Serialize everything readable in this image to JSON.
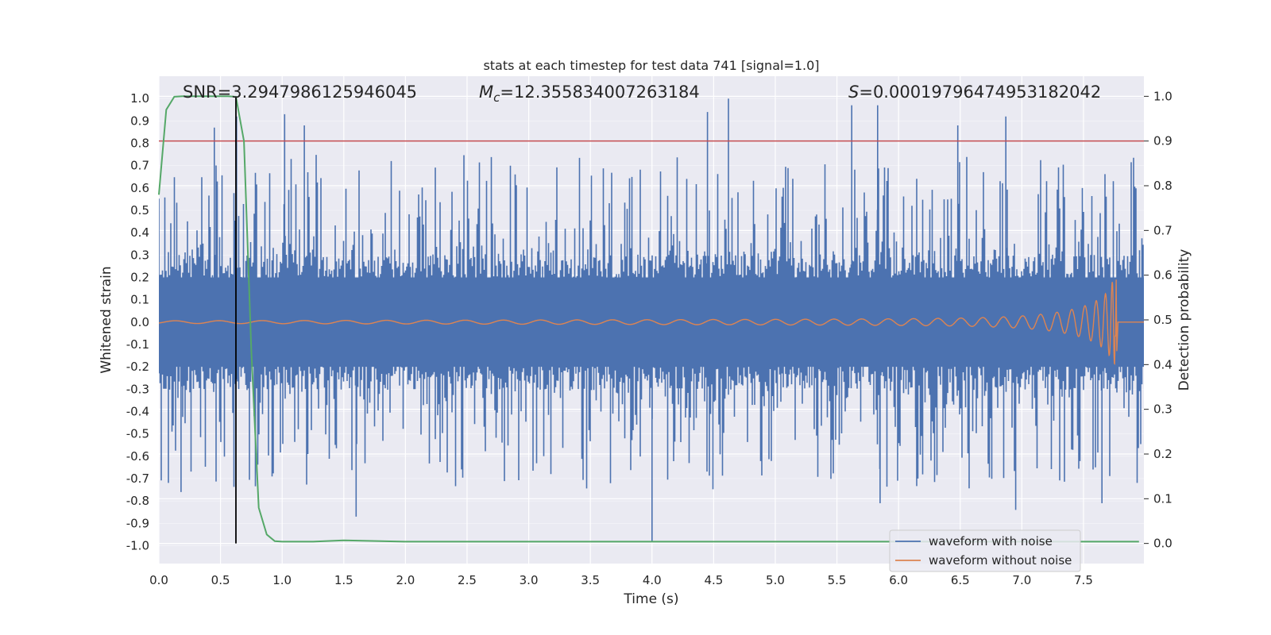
{
  "chart_data": {
    "type": "line",
    "title": "stats at each timestep for test data 741 [signal=1.0]",
    "xlabel": "Time (s)",
    "ylabel_left": "Whitened strain",
    "ylabel_right": "Detection probability",
    "xlim": [
      0.0,
      7.99
    ],
    "ylim_left": [
      -1.08,
      1.1
    ],
    "ylim_right": [
      -0.045,
      1.045
    ],
    "xticks": [
      0.0,
      0.5,
      1.0,
      1.5,
      2.0,
      2.5,
      3.0,
      3.5,
      4.0,
      4.5,
      5.0,
      5.5,
      6.0,
      6.5,
      7.0,
      7.5
    ],
    "xtick_labels": [
      "0.0",
      "0.5",
      "1.0",
      "1.5",
      "2.0",
      "2.5",
      "3.0",
      "3.5",
      "4.0",
      "4.5",
      "5.0",
      "5.5",
      "6.0",
      "6.5",
      "7.0",
      "7.5"
    ],
    "yticks_left": [
      1.0,
      0.9,
      0.8,
      0.7,
      0.6,
      0.5,
      0.4,
      0.3,
      0.2,
      0.1,
      0.0,
      -0.1,
      -0.2,
      -0.3,
      -0.4,
      -0.5,
      -0.6,
      -0.7,
      -0.8,
      -0.9,
      -1.0
    ],
    "ytick_labels_left": [
      "1.0",
      "0.9",
      "0.8",
      "0.7",
      "0.6",
      "0.5",
      "0.4",
      "0.3",
      "0.2",
      "0.1",
      "0.0",
      "-0.1",
      "-0.2",
      "-0.3",
      "-0.4",
      "-0.5",
      "-0.6",
      "-0.7",
      "-0.8",
      "-0.9",
      "-1.0"
    ],
    "yticks_right": [
      1.0,
      0.9,
      0.8,
      0.7,
      0.6,
      0.5,
      0.4,
      0.3,
      0.2,
      0.1,
      0.0
    ],
    "ytick_labels_right": [
      "1.0",
      "0.9",
      "0.8",
      "0.7",
      "0.6",
      "0.5",
      "0.4",
      "0.3",
      "0.2",
      "0.1",
      "0.0"
    ],
    "annotations": {
      "snr": "SNR=3.2947986125946045",
      "mc_symbol": "M",
      "mc_subscript": "c",
      "mc_value": "=12.355834007263184",
      "s_symbol": "S",
      "s_value": "=0.00019796474953182042"
    },
    "threshold_line": {
      "y_right": 0.9,
      "color": "#c44e52"
    },
    "vertical_marker": {
      "x": 0.625,
      "color": "#000000"
    },
    "noise_band": {
      "name": "waveform with noise",
      "color": "#4c72b0",
      "typical_peak": 0.3,
      "max_positive": 1.0,
      "min_negative": -1.0,
      "spikes": [
        {
          "x": 0.45,
          "y": 0.87
        },
        {
          "x": 0.63,
          "y": 0.92
        },
        {
          "x": 1.02,
          "y": 0.93
        },
        {
          "x": 4.45,
          "y": 0.94
        },
        {
          "x": 4.62,
          "y": 1.0
        },
        {
          "x": 5.62,
          "y": 0.97
        },
        {
          "x": 5.83,
          "y": 0.97
        },
        {
          "x": 6.48,
          "y": 0.88
        },
        {
          "x": 6.87,
          "y": 0.92
        },
        {
          "x": 1.18,
          "y": 0.88
        },
        {
          "x": 4.0,
          "y": -0.98
        },
        {
          "x": 7.65,
          "y": -0.81
        },
        {
          "x": 0.18,
          "y": -0.76
        },
        {
          "x": 1.6,
          "y": -0.87
        },
        {
          "x": 6.95,
          "y": -0.84
        },
        {
          "x": 5.85,
          "y": -0.81
        }
      ]
    },
    "clean_waveform": {
      "name": "waveform without noise",
      "color": "#dd8452",
      "merger_time": 7.76,
      "peak_amplitude": 0.19,
      "min_amplitude": -0.13
    },
    "series": [
      {
        "name": "detection probability",
        "color": "#55a868",
        "axis": "right",
        "x": [
          0.0,
          0.06,
          0.125,
          0.19,
          0.25,
          0.31,
          0.375,
          0.44,
          0.5,
          0.56,
          0.625,
          0.69,
          0.75,
          0.81,
          0.875,
          0.94,
          1.0,
          1.25,
          1.5,
          2.0,
          3.0,
          4.0,
          5.0,
          6.0,
          7.0,
          7.95
        ],
        "y": [
          0.78,
          0.97,
          0.999,
          1.0,
          1.0,
          1.0,
          1.0,
          1.0,
          1.0,
          1.0,
          0.999,
          0.9,
          0.43,
          0.08,
          0.02,
          0.005,
          0.004,
          0.004,
          0.007,
          0.004,
          0.004,
          0.004,
          0.004,
          0.004,
          0.004,
          0.004
        ]
      }
    ],
    "legend": {
      "position": "lower-right",
      "entries": [
        {
          "label": "waveform with noise",
          "color": "#4c72b0"
        },
        {
          "label": "waveform without noise",
          "color": "#dd8452"
        }
      ]
    }
  }
}
